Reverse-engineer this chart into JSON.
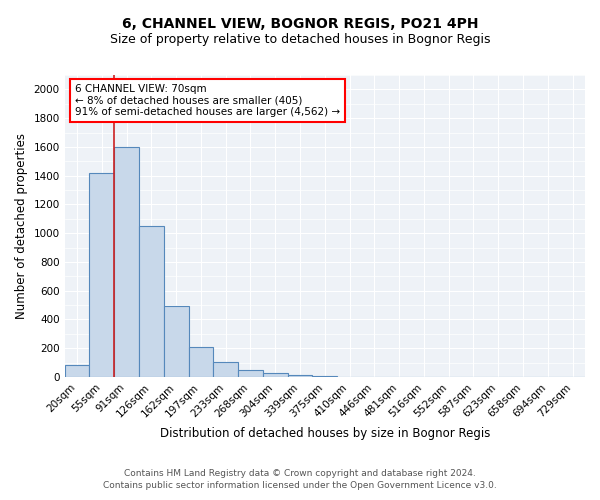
{
  "title": "6, CHANNEL VIEW, BOGNOR REGIS, PO21 4PH",
  "subtitle": "Size of property relative to detached houses in Bognor Regis",
  "xlabel": "Distribution of detached houses by size in Bognor Regis",
  "ylabel": "Number of detached properties",
  "footnote1": "Contains HM Land Registry data © Crown copyright and database right 2024.",
  "footnote2": "Contains public sector information licensed under the Open Government Licence v3.0.",
  "categories": [
    "20sqm",
    "55sqm",
    "91sqm",
    "126sqm",
    "162sqm",
    "197sqm",
    "233sqm",
    "268sqm",
    "304sqm",
    "339sqm",
    "375sqm",
    "410sqm",
    "446sqm",
    "481sqm",
    "516sqm",
    "552sqm",
    "587sqm",
    "623sqm",
    "658sqm",
    "694sqm",
    "729sqm"
  ],
  "values": [
    80,
    1420,
    1600,
    1050,
    490,
    205,
    105,
    45,
    25,
    15,
    10,
    0,
    0,
    0,
    0,
    0,
    0,
    0,
    0,
    0,
    0
  ],
  "bar_color": "#c8d8ea",
  "bar_edge_color": "#5588bb",
  "vline_color": "#cc2222",
  "annotation_text": "6 CHANNEL VIEW: 70sqm\n← 8% of detached houses are smaller (405)\n91% of semi-detached houses are larger (4,562) →",
  "ylim": [
    0,
    2100
  ],
  "bg_color": "#eef2f7",
  "grid_color": "#ffffff",
  "title_fontsize": 10,
  "subtitle_fontsize": 9,
  "axis_label_fontsize": 8.5,
  "tick_fontsize": 7.5,
  "annotation_fontsize": 7.5,
  "footnote_fontsize": 6.5
}
